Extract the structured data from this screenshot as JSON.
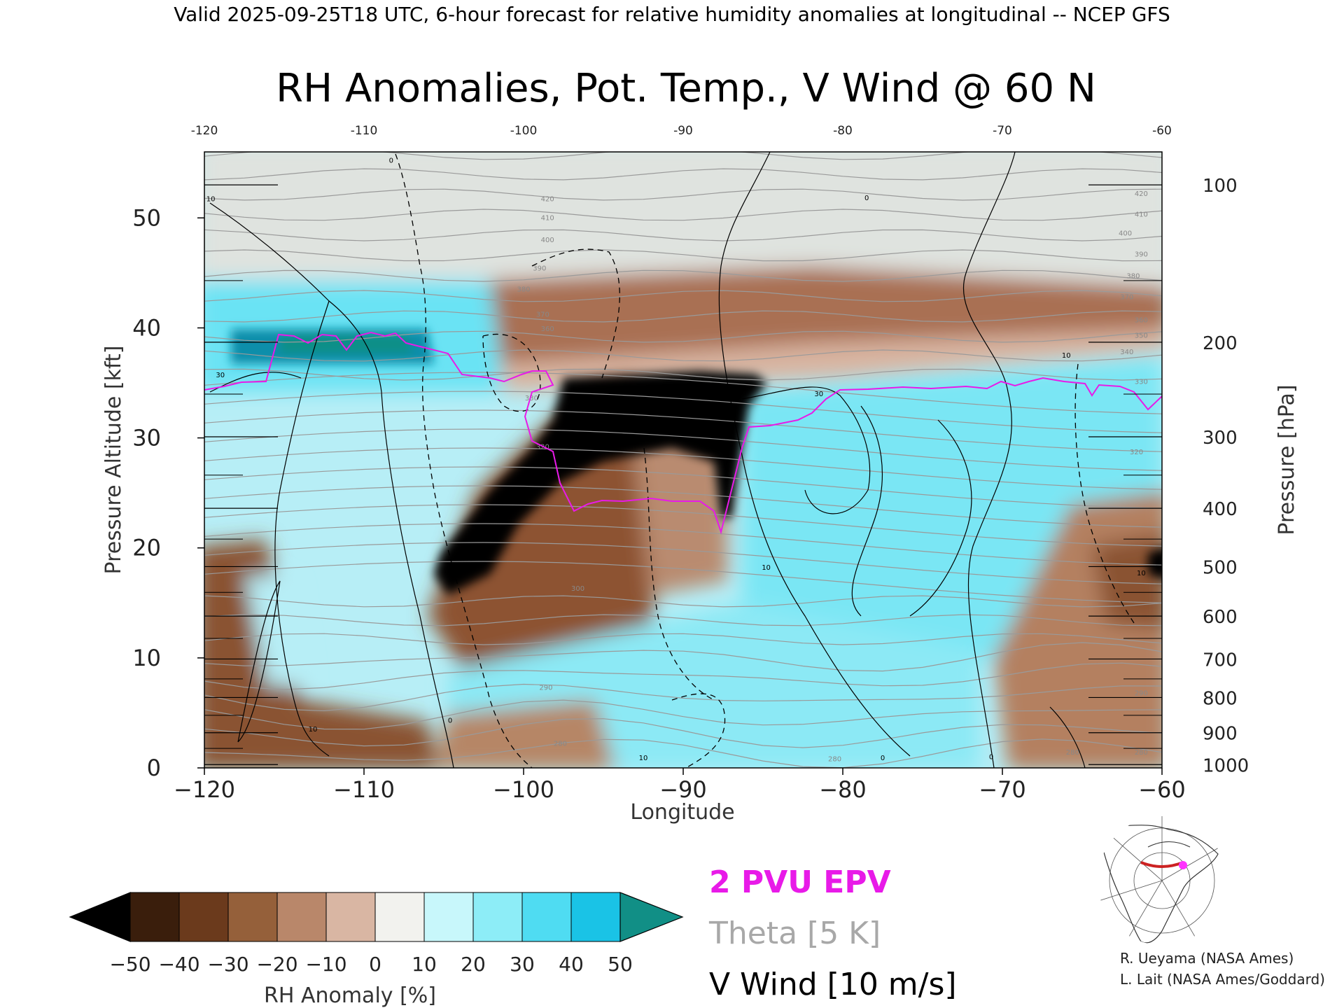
{
  "header": "Valid 2025-09-25T18 UTC, 6-hour forecast for relative humidity anomalies at longitudinal -- NCEP GFS",
  "chart_data": {
    "type": "heatmap",
    "title": "RH Anomalies, Pot. Temp., V Wind @ 60 N",
    "xlabel": "Longitude",
    "ylabel": "Pressure Altitude [kft]",
    "y2label": "Pressure [hPa]",
    "xlim": [
      -120,
      -60
    ],
    "ylim": [
      0,
      56
    ],
    "x_ticks": [
      -120,
      -110,
      -100,
      -90,
      -80,
      -70,
      -60
    ],
    "y_ticks": [
      0,
      10,
      20,
      30,
      40,
      50
    ],
    "pressure_ticks": [
      {
        "hPa": 100,
        "kft": 53
      },
      {
        "hPa": 200,
        "kft": 38.7
      },
      {
        "hPa": 300,
        "kft": 30.1
      },
      {
        "hPa": 400,
        "kft": 23.6
      },
      {
        "hPa": 500,
        "kft": 18.3
      },
      {
        "hPa": 600,
        "kft": 13.8
      },
      {
        "hPa": 700,
        "kft": 9.9
      },
      {
        "hPa": 800,
        "kft": 6.4
      },
      {
        "hPa": 900,
        "kft": 3.2
      },
      {
        "hPa": 1000,
        "kft": 0.3
      }
    ],
    "colorbar": {
      "label": "RH Anomaly [%]",
      "ticks": [
        -50,
        -40,
        -30,
        -20,
        -10,
        0,
        10,
        20,
        30,
        40,
        50
      ],
      "colors": [
        "#000000",
        "#3a1e0c",
        "#6b3a1c",
        "#95603a",
        "#b9876a",
        "#d9b6a3",
        "#f2f2ee",
        "#c8f7fb",
        "#8dedf7",
        "#4fdcf2",
        "#1ac3e6",
        "#0a8fb0",
        "#118f86"
      ]
    },
    "theta_labels": [
      {
        "x": -98.5,
        "y": 51.5,
        "text": "420"
      },
      {
        "x": -98.5,
        "y": 49.8,
        "text": "410"
      },
      {
        "x": -98.5,
        "y": 47.8,
        "text": "400"
      },
      {
        "x": -99,
        "y": 45.2,
        "text": "390"
      },
      {
        "x": -100,
        "y": 43.3,
        "text": "380"
      },
      {
        "x": -98.8,
        "y": 41.0,
        "text": "370"
      },
      {
        "x": -98.5,
        "y": 39.7,
        "text": "360"
      },
      {
        "x": -99.5,
        "y": 33.4,
        "text": "330"
      },
      {
        "x": -98.8,
        "y": 29.0,
        "text": "320"
      },
      {
        "x": -96.6,
        "y": 16.1,
        "text": "300"
      },
      {
        "x": -98.6,
        "y": 7.1,
        "text": "290"
      },
      {
        "x": -97.7,
        "y": 2.0,
        "text": "280"
      },
      {
        "x": -61.3,
        "y": 52.0,
        "text": "420"
      },
      {
        "x": -61.3,
        "y": 50.1,
        "text": "410"
      },
      {
        "x": -62.3,
        "y": 48.4,
        "text": "400"
      },
      {
        "x": -61.3,
        "y": 46.5,
        "text": "390"
      },
      {
        "x": -61.8,
        "y": 44.5,
        "text": "380"
      },
      {
        "x": -62.2,
        "y": 42.6,
        "text": "370"
      },
      {
        "x": -61.3,
        "y": 40.5,
        "text": "360"
      },
      {
        "x": -61.3,
        "y": 39.1,
        "text": "350"
      },
      {
        "x": -62.2,
        "y": 37.6,
        "text": "340"
      },
      {
        "x": -61.3,
        "y": 34.9,
        "text": "330"
      },
      {
        "x": -61.6,
        "y": 28.5,
        "text": "320"
      },
      {
        "x": -61.3,
        "y": 6.6,
        "text": "290"
      },
      {
        "x": -61.3,
        "y": 1.2,
        "text": "280"
      },
      {
        "x": -65.6,
        "y": 1.2,
        "text": "280"
      },
      {
        "x": -80.5,
        "y": 0.6,
        "text": "280"
      }
    ],
    "wind_labels": [
      {
        "x": -119.6,
        "y": 51.5,
        "text": "10"
      },
      {
        "x": -119.0,
        "y": 35.5,
        "text": "30"
      },
      {
        "x": -113.2,
        "y": 3.3,
        "text": "10"
      },
      {
        "x": -108.3,
        "y": 55.0,
        "text": "0"
      },
      {
        "x": -104.6,
        "y": 4.1,
        "text": "0"
      },
      {
        "x": -84.8,
        "y": 18.0,
        "text": "10"
      },
      {
        "x": -81.5,
        "y": 33.8,
        "text": "30"
      },
      {
        "x": -77.5,
        "y": 0.7,
        "text": "0"
      },
      {
        "x": -78.5,
        "y": 51.6,
        "text": "0"
      },
      {
        "x": -70.7,
        "y": 0.8,
        "text": "0"
      },
      {
        "x": -61.3,
        "y": 17.5,
        "text": "10"
      },
      {
        "x": -92.5,
        "y": 0.7,
        "text": "10"
      },
      {
        "x": -66.0,
        "y": 37.3,
        "text": "10"
      }
    ],
    "legend": [
      {
        "text": "2 PVU EPV",
        "color": "#e81ae8"
      },
      {
        "text": "Theta [5 K]",
        "color": "#a8a8a8"
      },
      {
        "text": "V Wind [10 m/s]",
        "color": "#000000"
      }
    ],
    "legend_placement": "bottom-center"
  },
  "inset_map": {
    "name": "north-america-locator-map",
    "path_color": "#cc2222",
    "point_color": "#ff33ff"
  },
  "credits": [
    "R. Ueyama (NASA Ames)",
    "L. Lait (NASA Ames/Goddard)"
  ]
}
